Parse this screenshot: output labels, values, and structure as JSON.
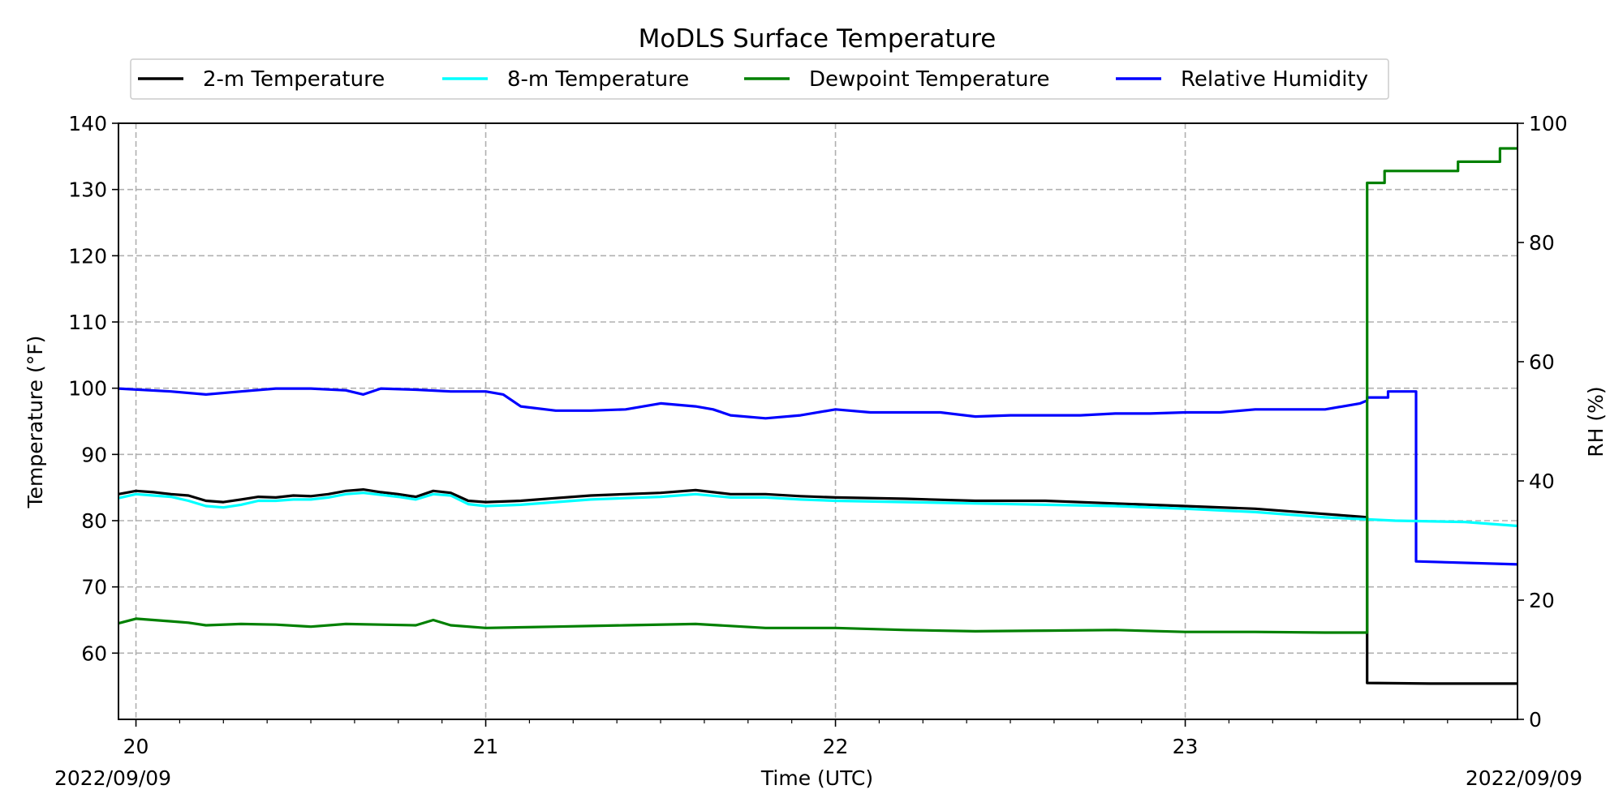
{
  "chart_data": {
    "type": "line",
    "title": "MoDLS Surface Temperature",
    "xlabel": "Time (UTC)",
    "ylabel": "Temperature (°F)",
    "y2label": "RH (%)",
    "x_start_label": "2022/09/09",
    "x_end_label": "2022/09/09",
    "xlim": [
      19.95,
      23.95
    ],
    "ylim": [
      50,
      140
    ],
    "y2lim": [
      0,
      100
    ],
    "x_ticks": [
      20,
      21,
      22,
      23
    ],
    "x_tick_labels": [
      "20",
      "21",
      "22",
      "23"
    ],
    "y_ticks": [
      60,
      70,
      80,
      90,
      100,
      110,
      120,
      130,
      140
    ],
    "y_tick_labels": [
      "60",
      "70",
      "80",
      "90",
      "100",
      "110",
      "120",
      "130",
      "140"
    ],
    "y2_ticks": [
      0,
      20,
      40,
      60,
      80,
      100
    ],
    "y2_tick_labels": [
      "0",
      "20",
      "40",
      "60",
      "80",
      "100"
    ],
    "grid": true,
    "legend_position": "top",
    "series": [
      {
        "name": "2-m Temperature",
        "axis": "left",
        "color": "#000000",
        "x": [
          19.95,
          20.0,
          20.05,
          20.1,
          20.15,
          20.2,
          20.25,
          20.3,
          20.35,
          20.4,
          20.45,
          20.5,
          20.55,
          20.6,
          20.65,
          20.7,
          20.75,
          20.8,
          20.85,
          20.9,
          20.95,
          21.0,
          21.1,
          21.2,
          21.3,
          21.4,
          21.5,
          21.6,
          21.7,
          21.8,
          21.9,
          22.0,
          22.2,
          22.4,
          22.6,
          22.8,
          23.0,
          23.2,
          23.35,
          23.5,
          23.52,
          23.52,
          23.7,
          23.95
        ],
        "y": [
          84.0,
          84.5,
          84.3,
          84.0,
          83.8,
          83.0,
          82.8,
          83.2,
          83.6,
          83.5,
          83.8,
          83.7,
          84.0,
          84.5,
          84.7,
          84.3,
          84.0,
          83.6,
          84.5,
          84.2,
          83.0,
          82.8,
          83.0,
          83.4,
          83.8,
          84.0,
          84.2,
          84.6,
          84.0,
          84.0,
          83.7,
          83.5,
          83.3,
          83.0,
          83.0,
          82.6,
          82.2,
          81.8,
          81.2,
          80.6,
          80.5,
          55.5,
          55.4,
          55.4
        ]
      },
      {
        "name": "8-m Temperature",
        "axis": "left",
        "color": "#00ffff",
        "x": [
          19.95,
          20.0,
          20.05,
          20.1,
          20.15,
          20.2,
          20.25,
          20.3,
          20.35,
          20.4,
          20.45,
          20.5,
          20.55,
          20.6,
          20.65,
          20.7,
          20.75,
          20.8,
          20.85,
          20.9,
          20.95,
          21.0,
          21.1,
          21.2,
          21.3,
          21.4,
          21.5,
          21.6,
          21.7,
          21.8,
          21.9,
          22.0,
          22.2,
          22.4,
          22.6,
          22.8,
          23.0,
          23.2,
          23.4,
          23.6,
          23.8,
          23.95
        ],
        "y": [
          83.4,
          84.0,
          83.8,
          83.6,
          83.0,
          82.2,
          82.0,
          82.4,
          83.0,
          83.0,
          83.2,
          83.2,
          83.5,
          84.0,
          84.2,
          83.9,
          83.6,
          83.2,
          84.0,
          83.8,
          82.5,
          82.2,
          82.4,
          82.8,
          83.2,
          83.4,
          83.6,
          84.0,
          83.5,
          83.5,
          83.2,
          83.0,
          82.8,
          82.6,
          82.4,
          82.2,
          81.8,
          81.3,
          80.5,
          80.0,
          79.8,
          79.2
        ]
      },
      {
        "name": "Dewpoint Temperature",
        "axis": "left",
        "color": "#008000",
        "x": [
          19.95,
          20.0,
          20.05,
          20.1,
          20.15,
          20.2,
          20.3,
          20.4,
          20.5,
          20.6,
          20.7,
          20.8,
          20.85,
          20.9,
          21.0,
          21.2,
          21.4,
          21.6,
          21.8,
          22.0,
          22.2,
          22.4,
          22.6,
          22.8,
          23.0,
          23.2,
          23.4,
          23.52,
          23.52,
          23.57,
          23.57,
          23.78,
          23.78,
          23.9,
          23.9,
          23.95
        ],
        "y": [
          64.5,
          65.2,
          65.0,
          64.8,
          64.6,
          64.2,
          64.4,
          64.3,
          64.0,
          64.4,
          64.3,
          64.2,
          65.0,
          64.2,
          63.8,
          64.0,
          64.2,
          64.4,
          63.8,
          63.8,
          63.5,
          63.3,
          63.4,
          63.5,
          63.2,
          63.2,
          63.1,
          63.1,
          131.0,
          131.0,
          132.8,
          132.8,
          134.2,
          134.2,
          136.2,
          136.2
        ]
      },
      {
        "name": "Relative Humidity",
        "axis": "right",
        "color": "#0000ff",
        "x": [
          19.95,
          20.1,
          20.2,
          20.3,
          20.4,
          20.5,
          20.6,
          20.65,
          20.7,
          20.8,
          20.9,
          21.0,
          21.05,
          21.1,
          21.2,
          21.3,
          21.4,
          21.5,
          21.6,
          21.65,
          21.7,
          21.8,
          21.9,
          22.0,
          22.1,
          22.2,
          22.3,
          22.4,
          22.5,
          22.6,
          22.7,
          22.8,
          22.9,
          23.0,
          23.1,
          23.2,
          23.3,
          23.4,
          23.5,
          23.52,
          23.52,
          23.58,
          23.58,
          23.66,
          23.66,
          23.95
        ],
        "y": [
          55.5,
          55.0,
          54.5,
          55.0,
          55.5,
          55.5,
          55.2,
          54.5,
          55.5,
          55.3,
          55.0,
          55.0,
          54.5,
          52.5,
          51.8,
          51.8,
          52.0,
          53.0,
          52.5,
          52.0,
          51.0,
          50.5,
          51.0,
          52.0,
          51.5,
          51.5,
          51.5,
          50.8,
          51.0,
          51.0,
          51.0,
          51.3,
          51.3,
          51.5,
          51.5,
          52.0,
          52.0,
          52.0,
          53.0,
          53.5,
          54.0,
          54.0,
          55.0,
          55.0,
          26.5,
          26.0
        ]
      }
    ]
  }
}
